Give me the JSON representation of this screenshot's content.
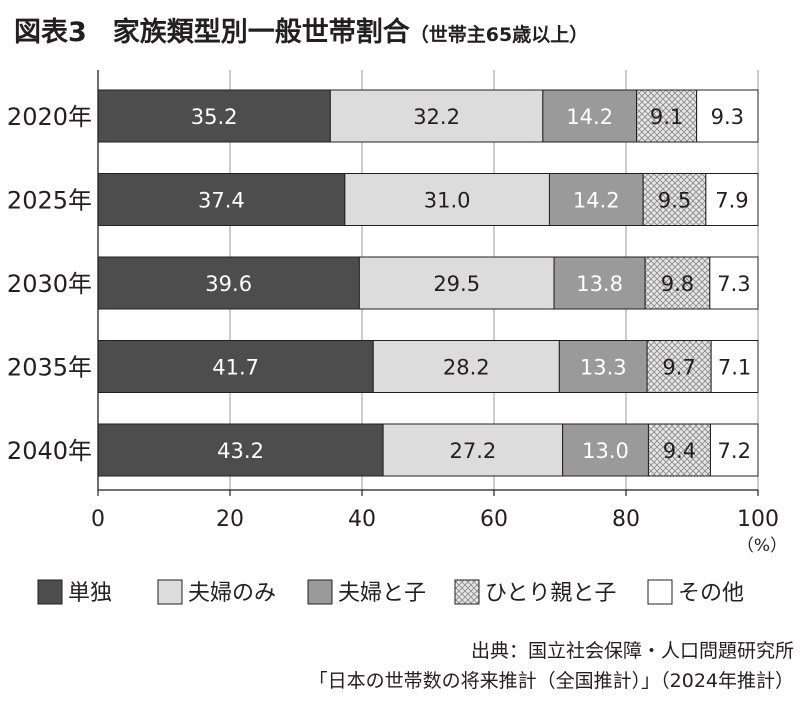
{
  "title": {
    "figure": "図表3",
    "main": "家族類型別一般世帯割合",
    "sub": "（世帯主65歳以上）"
  },
  "chart_data": {
    "type": "bar",
    "orientation": "horizontal",
    "stacked": true,
    "categories": [
      "2020年",
      "2025年",
      "2030年",
      "2035年",
      "2040年"
    ],
    "series": [
      {
        "name": "単独",
        "values": [
          35.2,
          37.4,
          39.6,
          41.7,
          43.2
        ],
        "color": "#4d4d4d",
        "label_color": "#ffffff"
      },
      {
        "name": "夫婦のみ",
        "values": [
          32.2,
          31.0,
          29.5,
          28.2,
          27.2
        ],
        "color": "#dcdcdc",
        "label_color": "#231f20"
      },
      {
        "name": "夫婦と子",
        "values": [
          14.2,
          14.2,
          13.8,
          13.3,
          13.0
        ],
        "color": "#9a9a9a",
        "label_color": "#ffffff"
      },
      {
        "name": "ひとり親と子",
        "values": [
          9.1,
          9.5,
          9.8,
          9.7,
          9.4
        ],
        "color": "crosshatch",
        "label_color": "#231f20"
      },
      {
        "name": "その他",
        "values": [
          9.3,
          7.9,
          7.3,
          7.1,
          7.2
        ],
        "color": "#ffffff",
        "label_color": "#231f20"
      }
    ],
    "xlim": [
      0,
      100
    ],
    "xticks": [
      0,
      20,
      40,
      60,
      80,
      100
    ],
    "unit": "（%）",
    "grid": true,
    "legend_position": "bottom"
  },
  "source": {
    "line1": "出典：国立社会保障・人口問題研究所",
    "line2": "「日本の世帯数の将来推計（全国推計）」（2024年推計）"
  }
}
